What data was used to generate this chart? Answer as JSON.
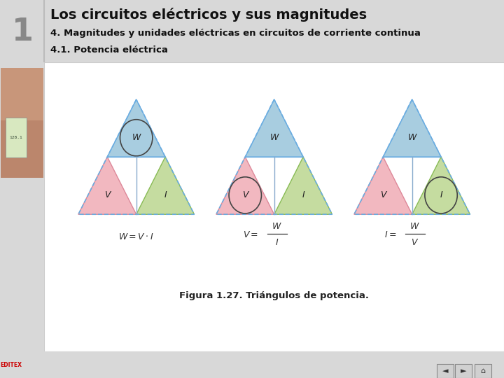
{
  "title_main": "Los circuitos eléctricos y sus magnitudes",
  "title_sub1": "4. Magnitudes y unidades eléctricas en circuitos de corriente continua",
  "title_sub2": "4.1. Potencia eléctrica",
  "figure_caption": "Figura 1.27. Triángulos de potencia.",
  "header_bg": "#d8d8d8",
  "header_number": "1",
  "header_number_color": "#888888",
  "main_bg": "#ffffff",
  "color_blue": "#a8cde0",
  "color_pink": "#f2b8c0",
  "color_green": "#c5dca0",
  "border_color": "#aaaaaa",
  "nav_bg": "#d0d0d0"
}
